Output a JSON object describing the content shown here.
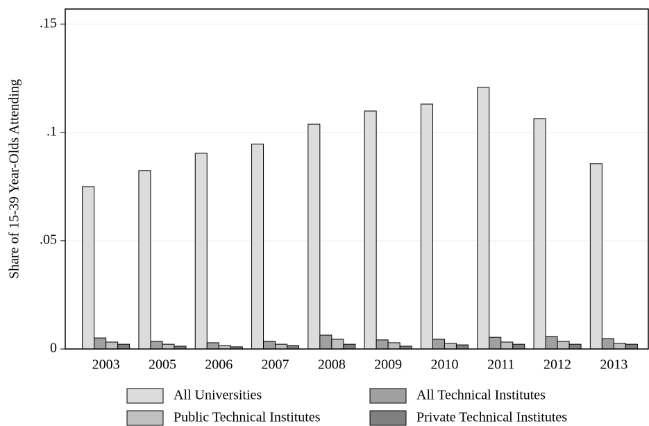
{
  "chart_data": {
    "type": "bar",
    "y_label": "Share of 15-39 Year-Olds Attending",
    "categories": [
      "2003",
      "2005",
      "2006",
      "2007",
      "2008",
      "2009",
      "2010",
      "2011",
      "2012",
      "2013"
    ],
    "series": [
      {
        "name": "All Universities",
        "color": "#dcdcdc",
        "values": [
          0.075,
          0.0824,
          0.0904,
          0.0946,
          0.1038,
          0.1099,
          0.1131,
          0.1208,
          0.1064,
          0.0856
        ]
      },
      {
        "name": "All Technical Institutes",
        "color": "#a0a0a0",
        "values": [
          0.0051,
          0.0035,
          0.0029,
          0.0035,
          0.0064,
          0.0042,
          0.0045,
          0.0054,
          0.0058,
          0.0048
        ]
      },
      {
        "name": "Public Technical Institutes",
        "color": "#c0c0c0",
        "values": [
          0.0032,
          0.0022,
          0.0016,
          0.0022,
          0.0045,
          0.0029,
          0.0026,
          0.0032,
          0.0035,
          0.0026
        ]
      },
      {
        "name": "Private Technical Institutes",
        "color": "#808080",
        "values": [
          0.0022,
          0.0013,
          0.001,
          0.0016,
          0.0022,
          0.0013,
          0.0019,
          0.0022,
          0.0022,
          0.0022
        ]
      }
    ],
    "ylim": [
      0,
      0.157
    ],
    "yticks": [
      0,
      {
        "value": 0.05,
        "label": ".05"
      },
      {
        "value": 0.1,
        "label": ".1"
      },
      {
        "value": 0.15,
        "label": ".15"
      }
    ],
    "grid": true
  }
}
